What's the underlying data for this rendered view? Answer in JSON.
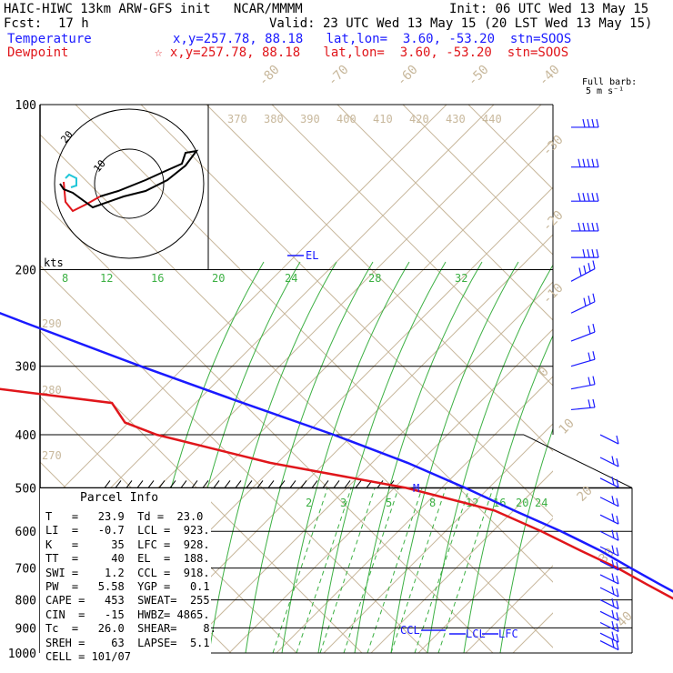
{
  "header": {
    "model_line": "HAIC-HIWC 13km ARW-GFS init   NCAR/MMMM",
    "init_line": "Init: 06 UTC Wed 13 May 15",
    "fcst_label": "Fcst:",
    "fcst_value": "17 h",
    "valid_line": "Valid: 23 UTC Wed 13 May 15 (20 LST Wed 13 May 15)",
    "temp_label": "Temperature",
    "temp_coords": "x,y=257.78, 88.18   lat,lon=  3.60, -53.20  stn=SOOS",
    "dew_label": "Dewpoint",
    "dew_coords": "☆ x,y=257.78, 88.18   lat,lon=  3.60, -53.20  stn=SOOS"
  },
  "barb_legend": {
    "line1": "Full barb:",
    "line2": "5 m s⁻¹"
  },
  "parcel": {
    "title": "Parcel Info",
    "rows": [
      "T   =   23.9  Td =  23.0",
      "LI  =   -0.7  LCL =  923.",
      "K   =     35  LFC =  928.",
      "TT  =     40  EL  =  188.",
      "SWI =    1.2  CCL =  918.",
      "PW  =   5.58  YGP =   0.1",
      "CAPE =   453  SWEAT=  255",
      "CIN  =   -15  HWBZ= 4865.",
      "Tc  =   26.0  SHEAR=    8.",
      "SREH =    63  LAPSE=  5.1",
      "CELL = 101/07"
    ]
  },
  "hodograph": {
    "unit_label": "kts",
    "ring_labels": [
      "20",
      "10"
    ]
  },
  "markers": {
    "el": "EL",
    "ccl": "CCL",
    "lcl": "LCL",
    "lfc": "LFC",
    "m": "M"
  },
  "chart_data": {
    "type": "line",
    "title": "",
    "y_axis": {
      "label": "",
      "scale": "log-pressure",
      "ticks": [
        100,
        200,
        300,
        400,
        500,
        600,
        700,
        800,
        900,
        1000
      ],
      "ylim": [
        1000,
        100
      ]
    },
    "isotherm_labels": [
      "-80",
      "-70",
      "-60",
      "-50",
      "-40",
      "-30",
      "-20",
      "-10",
      "0",
      "10",
      "20",
      "30",
      "40"
    ],
    "theta_labels": [
      "370",
      "380",
      "390",
      "400",
      "410",
      "420",
      "430",
      "440",
      "290",
      "280",
      "270"
    ],
    "mixing_ratio_labels_upper": [
      "8",
      "12",
      "16",
      "20",
      "24",
      "28",
      "32"
    ],
    "mixing_ratio_labels_lower": [
      "2",
      "3",
      "5",
      "8",
      "12",
      "16",
      "20",
      "24"
    ],
    "series": [
      {
        "name": "Temperature",
        "color": "#1a1aff",
        "points": [
          [
            100,
            -77
          ],
          [
            150,
            -68
          ],
          [
            200,
            -54
          ],
          [
            250,
            -41
          ],
          [
            300,
            -30
          ],
          [
            350,
            -20
          ],
          [
            400,
            -11
          ],
          [
            450,
            -4
          ],
          [
            500,
            1
          ],
          [
            550,
            5
          ],
          [
            600,
            9
          ],
          [
            650,
            12
          ],
          [
            700,
            14
          ],
          [
            750,
            16
          ],
          [
            800,
            18
          ],
          [
            850,
            19.5
          ],
          [
            900,
            21
          ],
          [
            950,
            23.2
          ],
          [
            960,
            23.9
          ]
        ]
      },
      {
        "name": "Dewpoint",
        "color": "#e0161b",
        "points": [
          [
            100,
            -78
          ],
          [
            150,
            -83
          ],
          [
            170,
            -82
          ],
          [
            200,
            -70
          ],
          [
            220,
            -64
          ],
          [
            250,
            -67
          ],
          [
            290,
            -73
          ],
          [
            300,
            -70
          ],
          [
            330,
            -55
          ],
          [
            350,
            -40
          ],
          [
            380,
            -41
          ],
          [
            400,
            -38
          ],
          [
            450,
            -25
          ],
          [
            500,
            -8
          ],
          [
            550,
            2
          ],
          [
            600,
            6
          ],
          [
            650,
            9
          ],
          [
            700,
            12
          ],
          [
            750,
            14
          ],
          [
            800,
            16
          ],
          [
            850,
            18
          ],
          [
            900,
            20
          ],
          [
            950,
            22.5
          ],
          [
            960,
            23
          ]
        ]
      }
    ],
    "wind_barbs": [
      {
        "p": 110,
        "speed_kt": 20,
        "dir": 270
      },
      {
        "p": 130,
        "speed_kt": 25,
        "dir": 270
      },
      {
        "p": 150,
        "speed_kt": 25,
        "dir": 270
      },
      {
        "p": 170,
        "speed_kt": 25,
        "dir": 270
      },
      {
        "p": 190,
        "speed_kt": 20,
        "dir": 270
      },
      {
        "p": 210,
        "speed_kt": 20,
        "dir": 265
      },
      {
        "p": 240,
        "speed_kt": 15,
        "dir": 260
      },
      {
        "p": 270,
        "speed_kt": 10,
        "dir": 250
      },
      {
        "p": 300,
        "speed_kt": 10,
        "dir": 240
      },
      {
        "p": 330,
        "speed_kt": 10,
        "dir": 230
      },
      {
        "p": 360,
        "speed_kt": 10,
        "dir": 220
      },
      {
        "p": 400,
        "speed_kt": 5,
        "dir": 210
      },
      {
        "p": 440,
        "speed_kt": 10,
        "dir": 100
      },
      {
        "p": 480,
        "speed_kt": 10,
        "dir": 100
      },
      {
        "p": 520,
        "speed_kt": 10,
        "dir": 100
      },
      {
        "p": 560,
        "speed_kt": 10,
        "dir": 100
      },
      {
        "p": 600,
        "speed_kt": 10,
        "dir": 100
      },
      {
        "p": 640,
        "speed_kt": 10,
        "dir": 100
      },
      {
        "p": 680,
        "speed_kt": 10,
        "dir": 100
      },
      {
        "p": 720,
        "speed_kt": 10,
        "dir": 100
      },
      {
        "p": 760,
        "speed_kt": 10,
        "dir": 100
      },
      {
        "p": 800,
        "speed_kt": 10,
        "dir": 100
      },
      {
        "p": 840,
        "speed_kt": 10,
        "dir": 100
      },
      {
        "p": 880,
        "speed_kt": 10,
        "dir": 100
      },
      {
        "p": 920,
        "speed_kt": 10,
        "dir": 100
      },
      {
        "p": 950,
        "speed_kt": 10,
        "dir": 100
      }
    ]
  }
}
